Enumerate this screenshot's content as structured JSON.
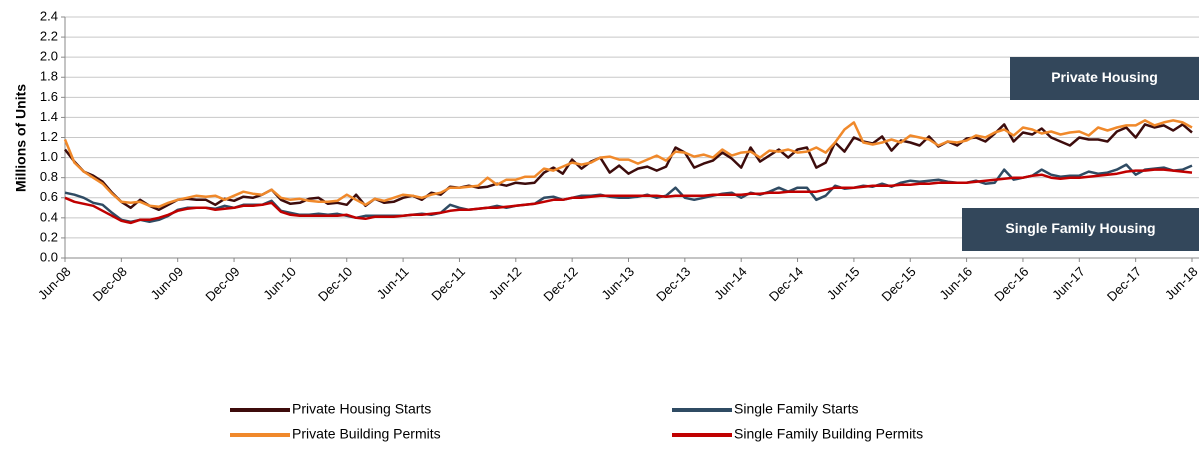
{
  "chart_data": {
    "type": "line",
    "y_label": "Millions of Units",
    "categories": [
      "Jun-08",
      null,
      null,
      null,
      null,
      null,
      "Dec-08",
      null,
      null,
      null,
      null,
      null,
      "Jun-09",
      null,
      null,
      null,
      null,
      null,
      "Dec-09",
      null,
      null,
      null,
      null,
      null,
      "Jun-10",
      null,
      null,
      null,
      null,
      null,
      "Dec-10",
      null,
      null,
      null,
      null,
      null,
      "Jun-11",
      null,
      null,
      null,
      null,
      null,
      "Dec-11",
      null,
      null,
      null,
      null,
      null,
      "Jun-12",
      null,
      null,
      null,
      null,
      null,
      "Dec-12",
      null,
      null,
      null,
      null,
      null,
      "Jun-13",
      null,
      null,
      null,
      null,
      null,
      "Dec-13",
      null,
      null,
      null,
      null,
      null,
      "Jun-14",
      null,
      null,
      null,
      null,
      null,
      "Dec-14",
      null,
      null,
      null,
      null,
      null,
      "Jun-15",
      null,
      null,
      null,
      null,
      null,
      "Dec-15",
      null,
      null,
      null,
      null,
      null,
      "Jun-16",
      null,
      null,
      null,
      null,
      null,
      "Dec-16",
      null,
      null,
      null,
      null,
      null,
      "Jun-17",
      null,
      null,
      null,
      null,
      null,
      "Dec-17",
      null,
      null,
      null,
      null,
      null,
      "Jun-18"
    ],
    "series": [
      {
        "name": "Private Housing Starts",
        "color": "#3d0c0c",
        "values": [
          1.08,
          0.96,
          0.86,
          0.82,
          0.76,
          0.65,
          0.56,
          0.5,
          0.58,
          0.52,
          0.48,
          0.53,
          0.58,
          0.59,
          0.58,
          0.58,
          0.53,
          0.59,
          0.57,
          0.61,
          0.6,
          0.63,
          0.68,
          0.58,
          0.54,
          0.55,
          0.59,
          0.6,
          0.54,
          0.55,
          0.53,
          0.63,
          0.52,
          0.59,
          0.55,
          0.56,
          0.6,
          0.62,
          0.58,
          0.65,
          0.63,
          0.71,
          0.7,
          0.72,
          0.7,
          0.71,
          0.74,
          0.72,
          0.75,
          0.74,
          0.75,
          0.85,
          0.9,
          0.84,
          0.98,
          0.89,
          0.96,
          1.0,
          0.85,
          0.92,
          0.84,
          0.89,
          0.91,
          0.87,
          0.91,
          1.1,
          1.05,
          0.9,
          0.94,
          0.97,
          1.05,
          0.99,
          0.9,
          1.1,
          0.96,
          1.02,
          1.08,
          1.0,
          1.08,
          1.1,
          0.9,
          0.95,
          1.15,
          1.06,
          1.2,
          1.16,
          1.14,
          1.21,
          1.07,
          1.17,
          1.15,
          1.12,
          1.21,
          1.11,
          1.16,
          1.12,
          1.19,
          1.2,
          1.16,
          1.24,
          1.33,
          1.16,
          1.25,
          1.23,
          1.29,
          1.2,
          1.16,
          1.12,
          1.2,
          1.18,
          1.18,
          1.16,
          1.26,
          1.3,
          1.2,
          1.33,
          1.3,
          1.32,
          1.27,
          1.33,
          1.25
        ]
      },
      {
        "name": "Private Building Permits",
        "color": "#f0892b",
        "values": [
          1.18,
          0.95,
          0.86,
          0.8,
          0.74,
          0.64,
          0.56,
          0.55,
          0.56,
          0.52,
          0.51,
          0.55,
          0.58,
          0.6,
          0.62,
          0.61,
          0.62,
          0.58,
          0.62,
          0.66,
          0.64,
          0.63,
          0.68,
          0.6,
          0.58,
          0.59,
          0.57,
          0.56,
          0.56,
          0.57,
          0.63,
          0.58,
          0.53,
          0.59,
          0.57,
          0.6,
          0.63,
          0.62,
          0.6,
          0.63,
          0.65,
          0.7,
          0.7,
          0.71,
          0.72,
          0.8,
          0.73,
          0.78,
          0.78,
          0.81,
          0.81,
          0.89,
          0.87,
          0.91,
          0.95,
          0.93,
          0.95,
          1.0,
          1.01,
          0.98,
          0.98,
          0.94,
          0.98,
          1.02,
          0.97,
          1.06,
          1.05,
          1.01,
          1.03,
          1.0,
          1.08,
          1.02,
          1.05,
          1.06,
          1.0,
          1.07,
          1.06,
          1.08,
          1.05,
          1.06,
          1.1,
          1.05,
          1.15,
          1.28,
          1.35,
          1.15,
          1.13,
          1.15,
          1.18,
          1.15,
          1.22,
          1.2,
          1.18,
          1.12,
          1.16,
          1.15,
          1.17,
          1.22,
          1.2,
          1.25,
          1.28,
          1.22,
          1.3,
          1.28,
          1.24,
          1.26,
          1.23,
          1.25,
          1.26,
          1.22,
          1.3,
          1.27,
          1.3,
          1.32,
          1.32,
          1.37,
          1.32,
          1.35,
          1.37,
          1.35,
          1.3
        ]
      },
      {
        "name": "Single Family Starts",
        "color": "#2f4b63",
        "values": [
          0.65,
          0.63,
          0.6,
          0.55,
          0.53,
          0.45,
          0.38,
          0.36,
          0.38,
          0.36,
          0.38,
          0.42,
          0.48,
          0.5,
          0.5,
          0.5,
          0.49,
          0.52,
          0.5,
          0.53,
          0.53,
          0.53,
          0.57,
          0.47,
          0.45,
          0.43,
          0.43,
          0.44,
          0.43,
          0.44,
          0.42,
          0.4,
          0.42,
          0.42,
          0.42,
          0.42,
          0.42,
          0.43,
          0.44,
          0.43,
          0.45,
          0.53,
          0.5,
          0.48,
          0.49,
          0.5,
          0.52,
          0.5,
          0.52,
          0.53,
          0.54,
          0.6,
          0.61,
          0.58,
          0.6,
          0.62,
          0.62,
          0.63,
          0.61,
          0.6,
          0.6,
          0.61,
          0.63,
          0.6,
          0.62,
          0.7,
          0.6,
          0.58,
          0.6,
          0.62,
          0.64,
          0.65,
          0.6,
          0.65,
          0.63,
          0.66,
          0.7,
          0.66,
          0.7,
          0.7,
          0.58,
          0.62,
          0.72,
          0.69,
          0.7,
          0.72,
          0.71,
          0.74,
          0.71,
          0.75,
          0.77,
          0.76,
          0.77,
          0.78,
          0.76,
          0.75,
          0.75,
          0.77,
          0.74,
          0.75,
          0.88,
          0.78,
          0.8,
          0.82,
          0.88,
          0.83,
          0.81,
          0.82,
          0.82,
          0.86,
          0.84,
          0.85,
          0.88,
          0.93,
          0.83,
          0.88,
          0.89,
          0.9,
          0.87,
          0.88,
          0.92
        ]
      },
      {
        "name": "Single Family Building Permits",
        "color": "#c00000",
        "values": [
          0.6,
          0.56,
          0.54,
          0.52,
          0.47,
          0.42,
          0.37,
          0.35,
          0.38,
          0.38,
          0.4,
          0.43,
          0.47,
          0.49,
          0.5,
          0.5,
          0.48,
          0.49,
          0.5,
          0.52,
          0.52,
          0.53,
          0.55,
          0.46,
          0.43,
          0.42,
          0.42,
          0.42,
          0.42,
          0.42,
          0.43,
          0.4,
          0.39,
          0.41,
          0.41,
          0.41,
          0.42,
          0.43,
          0.43,
          0.44,
          0.45,
          0.47,
          0.48,
          0.48,
          0.49,
          0.5,
          0.5,
          0.51,
          0.52,
          0.53,
          0.54,
          0.56,
          0.58,
          0.58,
          0.6,
          0.6,
          0.61,
          0.62,
          0.62,
          0.62,
          0.62,
          0.62,
          0.62,
          0.62,
          0.61,
          0.62,
          0.62,
          0.62,
          0.62,
          0.63,
          0.63,
          0.63,
          0.63,
          0.64,
          0.64,
          0.65,
          0.65,
          0.66,
          0.66,
          0.66,
          0.66,
          0.68,
          0.7,
          0.7,
          0.7,
          0.71,
          0.72,
          0.72,
          0.72,
          0.73,
          0.73,
          0.74,
          0.74,
          0.75,
          0.75,
          0.75,
          0.75,
          0.76,
          0.77,
          0.78,
          0.79,
          0.8,
          0.8,
          0.82,
          0.83,
          0.8,
          0.79,
          0.8,
          0.8,
          0.81,
          0.82,
          0.83,
          0.84,
          0.86,
          0.87,
          0.87,
          0.88,
          0.88,
          0.87,
          0.86,
          0.85
        ]
      }
    ],
    "ylim": [
      0,
      2.4
    ],
    "yticks": [
      {
        "value": 0,
        "label": "0.0"
      },
      0.2,
      0.4,
      0.6,
      0.8,
      {
        "value": 1,
        "label": "1.0"
      },
      1.2,
      1.4,
      1.6,
      1.8,
      {
        "value": 2,
        "label": "2.0"
      },
      2.2,
      2.4
    ],
    "grid": true,
    "annotations": [
      {
        "text": "Private Housing",
        "color": "#33475b"
      },
      {
        "text": "Single Family Housing",
        "color": "#33475b"
      }
    ]
  }
}
